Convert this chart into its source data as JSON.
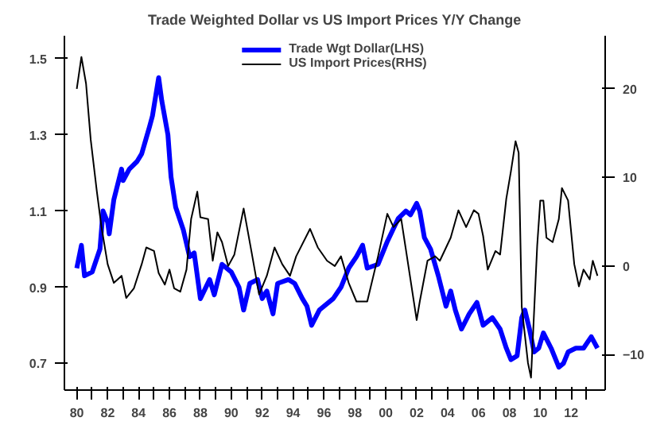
{
  "chart_data": {
    "type": "line",
    "title": "Trade Weighted Dollar vs US Import Prices Y/Y Change",
    "xlim": [
      1979.2,
      2014.2
    ],
    "xticks": [
      {
        "value": 1980,
        "label": "80"
      },
      {
        "value": 1981,
        "label": null
      },
      {
        "value": 1982,
        "label": "82"
      },
      {
        "value": 1983,
        "label": null
      },
      {
        "value": 1984,
        "label": "84"
      },
      {
        "value": 1985,
        "label": null
      },
      {
        "value": 1986,
        "label": "86"
      },
      {
        "value": 1987,
        "label": null
      },
      {
        "value": 1988,
        "label": "88"
      },
      {
        "value": 1989,
        "label": null
      },
      {
        "value": 1990,
        "label": "90"
      },
      {
        "value": 1991,
        "label": null
      },
      {
        "value": 1992,
        "label": "92"
      },
      {
        "value": 1993,
        "label": null
      },
      {
        "value": 1994,
        "label": "94"
      },
      {
        "value": 1995,
        "label": null
      },
      {
        "value": 1996,
        "label": "96"
      },
      {
        "value": 1997,
        "label": null
      },
      {
        "value": 1998,
        "label": "98"
      },
      {
        "value": 1999,
        "label": null
      },
      {
        "value": 2000,
        "label": "00"
      },
      {
        "value": 2001,
        "label": null
      },
      {
        "value": 2002,
        "label": "02"
      },
      {
        "value": 2003,
        "label": null
      },
      {
        "value": 2004,
        "label": "04"
      },
      {
        "value": 2005,
        "label": null
      },
      {
        "value": 2006,
        "label": "06"
      },
      {
        "value": 2007,
        "label": null
      },
      {
        "value": 2008,
        "label": "08"
      },
      {
        "value": 2009,
        "label": null
      },
      {
        "value": 2010,
        "label": "10"
      },
      {
        "value": 2011,
        "label": null
      },
      {
        "value": 2012,
        "label": "12"
      },
      {
        "value": 2013,
        "label": null
      }
    ],
    "ylim": [
      0.63,
      1.56
    ],
    "yticks": [
      0.7,
      0.9,
      1.1,
      1.3,
      1.5
    ],
    "y2lim": [
      -14,
      26
    ],
    "y2ticks": [
      -10,
      0,
      10,
      20
    ],
    "legend": "top",
    "grid": false,
    "line_style": "solid",
    "series": [
      {
        "name": "Trade Wgt Dollar(LHS)",
        "color": "#0000ff",
        "axis": "y",
        "x": [
          1980.0,
          1980.3,
          1980.5,
          1981.0,
          1981.5,
          1981.7,
          1982.0,
          1982.1,
          1982.4,
          1982.9,
          1983.0,
          1983.4,
          1983.9,
          1984.2,
          1984.7,
          1984.9,
          1985.3,
          1985.5,
          1985.9,
          1986.1,
          1986.4,
          1986.9,
          1987.3,
          1987.6,
          1988.0,
          1988.6,
          1988.9,
          1989.4,
          1990.0,
          1990.5,
          1990.8,
          1991.2,
          1991.7,
          1992.0,
          1992.3,
          1992.7,
          1993.0,
          1993.7,
          1994.1,
          1994.6,
          1994.9,
          1995.2,
          1995.7,
          1996.6,
          1997.1,
          1997.6,
          1998.1,
          1998.5,
          1998.8,
          1999.5,
          2000.1,
          2000.8,
          2001.3,
          2001.6,
          2002.0,
          2002.2,
          2002.5,
          2002.9,
          2003.4,
          2003.9,
          2004.2,
          2004.5,
          2004.9,
          2005.4,
          2005.9,
          2006.3,
          2006.6,
          2006.9,
          2007.4,
          2007.8,
          2008.1,
          2008.5,
          2008.8,
          2009.0,
          2009.3,
          2009.6,
          2009.9,
          2010.2,
          2010.7,
          2011.2,
          2011.5,
          2011.8,
          2012.3,
          2012.8,
          2013.3,
          2013.7
        ],
        "values": [
          0.95,
          1.01,
          0.93,
          0.94,
          1.0,
          1.1,
          1.07,
          1.04,
          1.13,
          1.21,
          1.18,
          1.21,
          1.23,
          1.25,
          1.32,
          1.35,
          1.45,
          1.39,
          1.3,
          1.19,
          1.11,
          1.05,
          0.98,
          0.99,
          0.87,
          0.92,
          0.88,
          0.96,
          0.94,
          0.9,
          0.84,
          0.91,
          0.92,
          0.87,
          0.89,
          0.83,
          0.91,
          0.92,
          0.91,
          0.87,
          0.85,
          0.8,
          0.84,
          0.87,
          0.9,
          0.95,
          0.98,
          1.01,
          0.95,
          0.96,
          1.02,
          1.08,
          1.1,
          1.09,
          1.12,
          1.1,
          1.03,
          1.0,
          0.93,
          0.85,
          0.89,
          0.84,
          0.79,
          0.83,
          0.86,
          0.8,
          0.81,
          0.82,
          0.79,
          0.74,
          0.71,
          0.72,
          0.82,
          0.84,
          0.79,
          0.73,
          0.74,
          0.78,
          0.74,
          0.69,
          0.7,
          0.73,
          0.74,
          0.74,
          0.77,
          0.74
        ]
      },
      {
        "name": "US Import Prices(RHS)",
        "color": "#000000",
        "axis": "y2",
        "x": [
          1980.0,
          1980.3,
          1980.6,
          1980.9,
          1981.3,
          1981.6,
          1982.0,
          1982.4,
          1982.9,
          1983.2,
          1983.7,
          1984.2,
          1984.5,
          1985.0,
          1985.3,
          1985.7,
          1986.0,
          1986.3,
          1986.7,
          1987.1,
          1987.4,
          1987.8,
          1988.0,
          1988.5,
          1988.8,
          1989.1,
          1989.4,
          1989.8,
          1990.2,
          1990.8,
          1991.3,
          1991.8,
          1992.3,
          1992.8,
          1993.3,
          1993.8,
          1994.2,
          1995.1,
          1995.6,
          1996.2,
          1996.7,
          1997.1,
          1997.6,
          1998.1,
          1998.8,
          1999.5,
          2000.1,
          2000.5,
          2001.0,
          2001.5,
          2002.0,
          2002.2,
          2002.7,
          2003.2,
          2003.5,
          2004.2,
          2004.7,
          2005.2,
          2005.7,
          2006.0,
          2006.3,
          2006.6,
          2007.1,
          2007.4,
          2007.8,
          2008.1,
          2008.4,
          2008.6,
          2008.8,
          2009.2,
          2009.4,
          2009.8,
          2010.0,
          2010.2,
          2010.4,
          2010.8,
          2011.2,
          2011.4,
          2011.8,
          2012.2,
          2012.5,
          2012.8,
          2013.2,
          2013.4,
          2013.7
        ],
        "values": [
          20,
          23.6,
          20.6,
          14.3,
          8.4,
          4.4,
          0.2,
          -1.9,
          -1.1,
          -3.6,
          -2.5,
          0.2,
          2.1,
          1.7,
          -0.8,
          -2.1,
          -0.4,
          -2.5,
          -2.9,
          -0.4,
          5.3,
          8.4,
          5.5,
          5.3,
          0.6,
          3.8,
          2.7,
          0,
          1.3,
          6.5,
          1.7,
          -3.2,
          -1.1,
          2.1,
          0.2,
          -1.1,
          1.1,
          4.2,
          2.1,
          0.6,
          0,
          1.1,
          -1.9,
          -4.0,
          -4.0,
          1.1,
          5.9,
          4.4,
          5.3,
          -0.4,
          -6.1,
          -4.0,
          0.6,
          1.1,
          0.6,
          3.2,
          6.3,
          4.4,
          6.3,
          5.9,
          3.4,
          -0.4,
          1.7,
          1.3,
          7.6,
          10.7,
          14.1,
          12.8,
          -4.6,
          -10.9,
          -12.6,
          2.3,
          7.4,
          7.4,
          3.2,
          2.7,
          5.3,
          8.8,
          7.4,
          0.2,
          -2.3,
          -0.4,
          -1.5,
          0.6,
          -1.1
        ]
      }
    ]
  }
}
